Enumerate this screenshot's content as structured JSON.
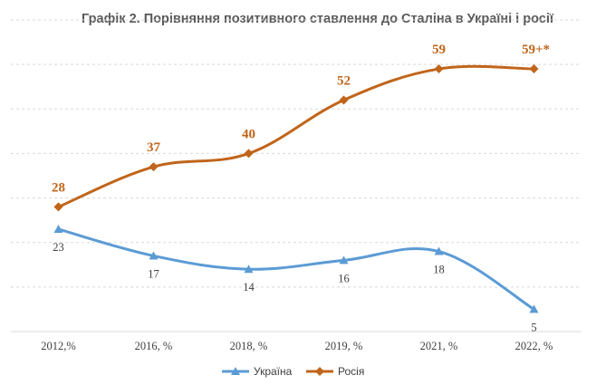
{
  "chart_data": {
    "type": "line",
    "title": "Графік 2. Порівняння позитивного ставлення до Сталіна в Україні і росії",
    "categories": [
      "2012,%",
      "2016, %",
      "2018, %",
      "2019, %",
      "2021, %",
      "2022, %"
    ],
    "series": [
      {
        "name": "Україна",
        "values": [
          23,
          17,
          14,
          16,
          18,
          5
        ],
        "labels": [
          "23",
          "17",
          "14",
          "16",
          "18",
          "5"
        ],
        "color": "#5b9bd5",
        "marker": "triangle"
      },
      {
        "name": "Росія",
        "values": [
          28,
          37,
          40,
          52,
          59,
          59
        ],
        "labels": [
          "28",
          "37",
          "40",
          "52",
          "59",
          "59+*"
        ],
        "color": "#c0651a",
        "marker": "diamond"
      }
    ],
    "ylim": [
      0,
      70
    ],
    "grid": true,
    "legend": "bottom",
    "smooth": true
  }
}
